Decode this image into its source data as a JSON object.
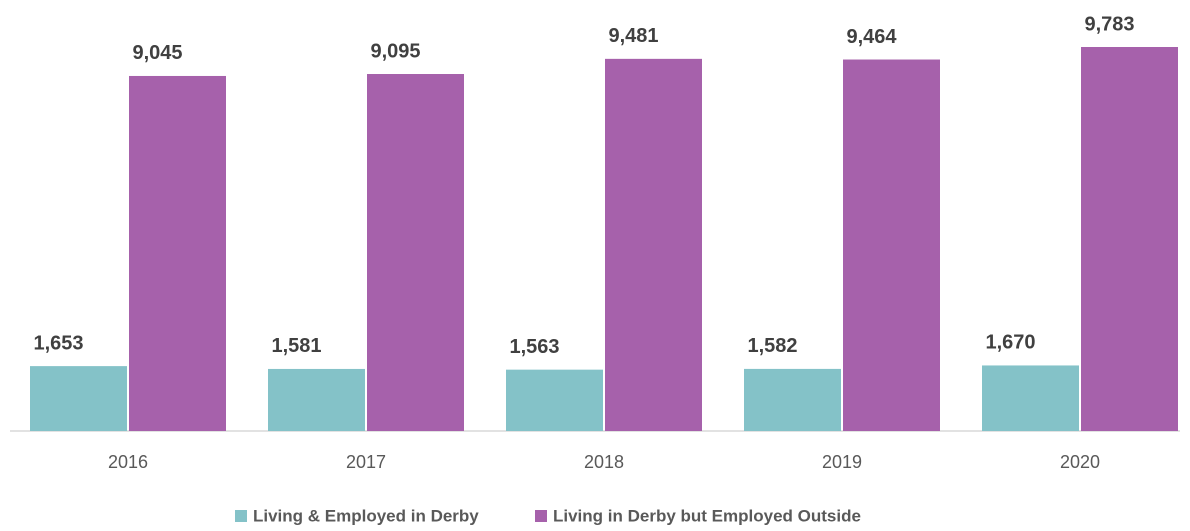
{
  "chart_data": {
    "type": "bar",
    "categories": [
      "2016",
      "2017",
      "2018",
      "2019",
      "2020"
    ],
    "series": [
      {
        "name": "Living & Employed in Derby",
        "color": "#84c2c8",
        "values": [
          1653,
          1581,
          1563,
          1582,
          1670
        ],
        "value_labels": [
          "1,653",
          "1,581",
          "1,563",
          "1,582",
          "1,670"
        ]
      },
      {
        "name": "Living in Derby but Employed Outside",
        "color": "#a661ab",
        "values": [
          9045,
          9095,
          9481,
          9464,
          9783
        ],
        "value_labels": [
          "9,045",
          "9,095",
          "9,481",
          "9,464",
          "9,783"
        ]
      }
    ],
    "legend": "bottom"
  }
}
